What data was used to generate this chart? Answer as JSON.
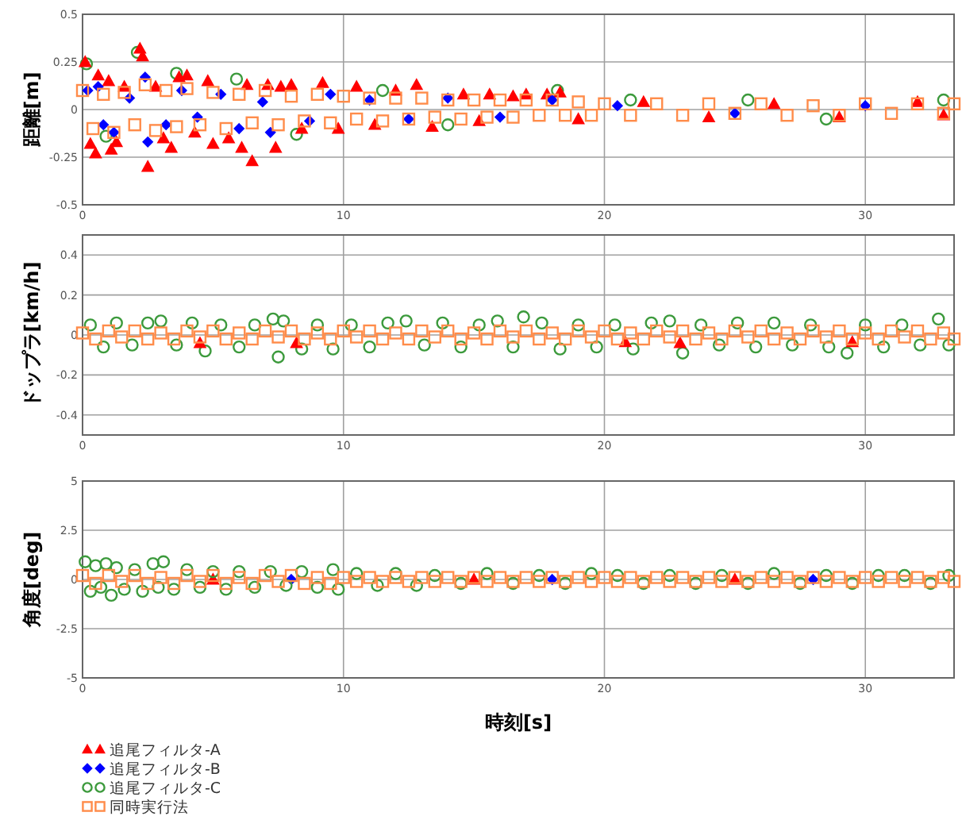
{
  "chart_data": [
    {
      "type": "scatter",
      "ylabel": "距離[m]",
      "xlim": [
        0,
        33.4
      ],
      "xticks": [
        0,
        10,
        20,
        30
      ],
      "ylim": [
        -0.5,
        0.5
      ],
      "yticks": [
        -0.5,
        -0.25,
        0,
        0.25,
        0.5
      ],
      "grid": true,
      "series": [
        {
          "color": "#3c9a3c",
          "marker": "circle",
          "x": [
            0.15,
            0.9,
            2.1,
            3.6,
            5.9,
            8.2,
            11.5,
            14.0,
            18.2,
            21.0,
            25.5,
            28.5,
            33.0
          ],
          "values": [
            0.24,
            -0.14,
            0.3,
            0.19,
            0.16,
            -0.13,
            0.1,
            -0.08,
            0.1,
            0.05,
            0.05,
            -0.05,
            0.05
          ]
        },
        {
          "color": "#ff0000",
          "marker": "triangle",
          "x": [
            0.1,
            0.3,
            0.5,
            0.6,
            1.0,
            1.1,
            1.3,
            1.6,
            2.2,
            2.3,
            2.5,
            2.8,
            3.1,
            3.4,
            3.7,
            4.0,
            4.3,
            4.8,
            5.0,
            5.6,
            6.1,
            6.3,
            6.5,
            7.1,
            7.4,
            7.6,
            8.0,
            8.4,
            9.2,
            9.8,
            10.5,
            11.2,
            12.0,
            12.8,
            13.4,
            14.6,
            15.2,
            15.6,
            16.5,
            17.0,
            17.8,
            18.3,
            19.0,
            21.5,
            24.0,
            26.5,
            29.0,
            32.0,
            33.0
          ],
          "values": [
            0.25,
            -0.18,
            -0.23,
            0.18,
            0.15,
            -0.21,
            -0.17,
            0.12,
            0.32,
            0.28,
            -0.3,
            0.12,
            -0.15,
            -0.2,
            0.17,
            0.18,
            -0.12,
            0.15,
            -0.18,
            -0.15,
            -0.2,
            0.13,
            -0.27,
            0.13,
            -0.2,
            0.12,
            0.13,
            -0.1,
            0.14,
            -0.1,
            0.12,
            -0.08,
            0.1,
            0.13,
            -0.09,
            0.08,
            -0.06,
            0.08,
            0.07,
            0.08,
            0.08,
            0.09,
            -0.05,
            0.04,
            -0.04,
            0.03,
            -0.04,
            0.04,
            -0.03
          ]
        },
        {
          "color": "#0000ff",
          "marker": "diamond",
          "x": [
            0.2,
            0.6,
            0.8,
            1.2,
            1.8,
            2.4,
            2.5,
            3.2,
            3.8,
            4.4,
            5.3,
            6.0,
            6.9,
            7.2,
            8.7,
            9.5,
            11.0,
            12.5,
            14.0,
            16.0,
            18.0,
            20.5,
            25.0,
            30.0
          ],
          "values": [
            0.1,
            0.12,
            -0.08,
            -0.12,
            0.06,
            0.17,
            -0.17,
            -0.08,
            0.1,
            -0.04,
            0.08,
            -0.1,
            0.04,
            -0.12,
            -0.06,
            0.08,
            0.05,
            -0.05,
            0.06,
            -0.04,
            0.05,
            0.02,
            -0.02,
            0.02
          ]
        },
        {
          "color": "#ff8c4a",
          "marker": "square",
          "x": [
            0.0,
            0.4,
            0.8,
            1.2,
            1.6,
            2.0,
            2.4,
            2.8,
            3.2,
            3.6,
            4.0,
            4.5,
            5.0,
            5.5,
            6.0,
            6.5,
            7.0,
            7.5,
            8.0,
            8.5,
            9.0,
            9.5,
            10,
            10.5,
            11,
            11.5,
            12,
            12.5,
            13,
            13.5,
            14,
            14.5,
            15,
            15.5,
            16,
            16.5,
            17,
            17.5,
            18,
            18.5,
            19,
            19.5,
            20,
            21,
            22,
            23,
            24,
            25,
            26,
            27,
            28,
            29,
            30,
            31,
            32,
            33,
            33.4
          ],
          "values": [
            0.1,
            -0.1,
            0.08,
            -0.12,
            0.09,
            -0.08,
            0.13,
            -0.11,
            0.1,
            -0.09,
            0.11,
            -0.08,
            0.09,
            -0.1,
            0.08,
            -0.07,
            0.1,
            -0.08,
            0.07,
            -0.06,
            0.08,
            -0.07,
            0.07,
            -0.05,
            0.06,
            -0.06,
            0.06,
            -0.05,
            0.06,
            -0.04,
            0.05,
            -0.05,
            0.05,
            -0.04,
            0.05,
            -0.04,
            0.05,
            -0.03,
            0.05,
            -0.03,
            0.04,
            -0.03,
            0.03,
            -0.03,
            0.03,
            -0.03,
            0.03,
            -0.02,
            0.03,
            -0.03,
            0.02,
            -0.03,
            0.03,
            -0.02,
            0.03,
            -0.02,
            0.03
          ]
        }
      ]
    },
    {
      "type": "scatter",
      "ylabel": "ドップラ[km/h]",
      "xlim": [
        0,
        33.4
      ],
      "xticks": [
        0,
        10,
        20,
        30
      ],
      "ylim": [
        -0.5,
        0.5
      ],
      "yticks": [
        -0.4,
        -0.2,
        0,
        0.2,
        0.4
      ],
      "grid": true,
      "series": [
        {
          "color": "#3c9a3c",
          "marker": "circle",
          "x": [
            0.3,
            0.8,
            1.3,
            1.9,
            2.5,
            3.0,
            3.6,
            4.2,
            4.7,
            5.3,
            6.0,
            6.6,
            7.3,
            7.5,
            7.7,
            8.4,
            9.0,
            9.6,
            10.3,
            11.0,
            11.7,
            12.4,
            13.1,
            13.8,
            14.5,
            15.2,
            15.9,
            16.5,
            16.9,
            17.6,
            18.3,
            19.0,
            19.7,
            20.4,
            21.1,
            21.8,
            22.5,
            23.0,
            23.7,
            24.4,
            25.1,
            25.8,
            26.5,
            27.2,
            27.9,
            28.6,
            29.3,
            30.0,
            30.7,
            31.4,
            32.1,
            32.8,
            33.2
          ],
          "values": [
            0.05,
            -0.06,
            0.06,
            -0.05,
            0.06,
            0.07,
            -0.05,
            0.06,
            -0.08,
            0.05,
            -0.06,
            0.05,
            0.08,
            -0.11,
            0.07,
            -0.07,
            0.05,
            -0.07,
            0.05,
            -0.06,
            0.06,
            0.07,
            -0.05,
            0.06,
            -0.06,
            0.05,
            0.07,
            -0.06,
            0.09,
            0.06,
            -0.07,
            0.05,
            -0.06,
            0.05,
            -0.07,
            0.06,
            0.07,
            -0.09,
            0.05,
            -0.05,
            0.06,
            -0.06,
            0.06,
            -0.05,
            0.05,
            -0.06,
            -0.09,
            0.05,
            -0.06,
            0.05,
            -0.05,
            0.08,
            -0.05
          ]
        },
        {
          "color": "#ff0000",
          "marker": "triangle",
          "x": [
            4.5,
            8.2,
            20.8,
            22.9,
            29.5
          ],
          "values": [
            -0.04,
            -0.04,
            -0.035,
            -0.04,
            -0.035
          ]
        },
        {
          "color": "#ff8c4a",
          "marker": "square",
          "x": [
            0.0,
            0.5,
            1,
            1.5,
            2,
            2.5,
            3,
            3.5,
            4,
            4.5,
            5,
            5.5,
            6,
            6.5,
            7,
            7.5,
            8,
            8.5,
            9,
            9.5,
            10,
            10.5,
            11,
            11.5,
            12,
            12.5,
            13,
            13.5,
            14,
            14.5,
            15,
            15.5,
            16,
            16.5,
            17,
            17.5,
            18,
            18.5,
            19,
            19.5,
            20,
            20.5,
            21,
            21.5,
            22,
            22.5,
            23,
            23.5,
            24,
            24.5,
            25,
            25.5,
            26,
            26.5,
            27,
            27.5,
            28,
            28.5,
            29,
            29.5,
            30,
            30.5,
            31,
            31.5,
            32,
            32.5,
            33,
            33.4
          ],
          "values": [
            0.01,
            -0.02,
            0.02,
            -0.01,
            0.02,
            -0.02,
            0.01,
            -0.02,
            0.02,
            -0.01,
            0.02,
            -0.02,
            0.01,
            -0.02,
            0.02,
            -0.01,
            0.02,
            -0.02,
            0.01,
            -0.02,
            0.02,
            -0.01,
            0.02,
            -0.02,
            0.01,
            -0.02,
            0.02,
            -0.01,
            0.02,
            -0.02,
            0.01,
            -0.02,
            0.02,
            -0.01,
            0.02,
            -0.02,
            0.01,
            -0.02,
            0.02,
            -0.01,
            0.02,
            -0.02,
            0.01,
            -0.02,
            0.02,
            -0.01,
            0.02,
            -0.02,
            0.01,
            -0.02,
            0.02,
            -0.01,
            0.02,
            -0.02,
            0.01,
            -0.02,
            0.02,
            -0.01,
            0.02,
            -0.02,
            0.01,
            -0.02,
            0.02,
            -0.01,
            0.02,
            -0.02,
            0.01,
            -0.02
          ]
        }
      ]
    },
    {
      "type": "scatter",
      "ylabel": "角度[deg]",
      "xlabel": "時刻[s]",
      "xlim": [
        0,
        33.4
      ],
      "xticks": [
        0,
        10,
        20,
        30
      ],
      "ylim": [
        -5,
        5
      ],
      "yticks": [
        -5,
        -2.5,
        0,
        2.5,
        5
      ],
      "grid": true,
      "legend": "bottom left",
      "series": [
        {
          "name": "追尾フィルタ-A",
          "color": "#ff0000",
          "marker": "triangle",
          "x": [
            5,
            15,
            25
          ],
          "values": [
            0.0,
            0.0,
            0.0
          ]
        },
        {
          "name": "追尾フィルタ-B",
          "color": "#0000ff",
          "marker": "diamond",
          "x": [
            8,
            18,
            28
          ],
          "values": [
            0.0,
            0.0,
            0.0
          ]
        },
        {
          "name": "追尾フィルタ-C",
          "color": "#3c9a3c",
          "marker": "circle",
          "x": [
            0.1,
            0.3,
            0.5,
            0.7,
            0.9,
            1.1,
            1.3,
            1.6,
            2.0,
            2.3,
            2.7,
            2.9,
            3.1,
            3.5,
            4.0,
            4.5,
            5.0,
            5.5,
            6.0,
            6.6,
            7.2,
            7.8,
            8.4,
            9.0,
            9.6,
            9.8,
            10.5,
            11.3,
            12.0,
            12.8,
            13.5,
            14.5,
            15.5,
            16.5,
            17.5,
            18.5,
            19.5,
            20.5,
            21.5,
            22.5,
            23.5,
            24.5,
            25.5,
            26.5,
            27.5,
            28.5,
            29.5,
            30.5,
            31.5,
            32.5,
            33.2
          ],
          "values": [
            0.9,
            -0.6,
            0.7,
            -0.4,
            0.8,
            -0.8,
            0.6,
            -0.5,
            0.5,
            -0.6,
            0.8,
            -0.4,
            0.9,
            -0.5,
            0.5,
            -0.4,
            0.4,
            -0.5,
            0.4,
            -0.4,
            0.4,
            -0.3,
            0.4,
            -0.4,
            0.5,
            -0.5,
            0.3,
            -0.3,
            0.3,
            -0.3,
            0.2,
            -0.2,
            0.3,
            -0.2,
            0.2,
            -0.2,
            0.3,
            0.2,
            -0.2,
            0.2,
            -0.2,
            0.2,
            -0.2,
            0.3,
            -0.2,
            0.2,
            -0.2,
            0.2,
            0.2,
            -0.2,
            0.2
          ]
        },
        {
          "name": "同時実行法",
          "color": "#ff8c4a",
          "marker": "square",
          "x": [
            0.0,
            0.5,
            1,
            1.5,
            2,
            2.5,
            3,
            3.5,
            4,
            4.5,
            5,
            5.5,
            6,
            6.5,
            7,
            7.5,
            8,
            8.5,
            9,
            9.5,
            10,
            10.5,
            11,
            11.5,
            12,
            12.5,
            13,
            13.5,
            14,
            14.5,
            15,
            15.5,
            16,
            16.5,
            17,
            17.5,
            18,
            18.5,
            19,
            19.5,
            20,
            20.5,
            21,
            21.5,
            22,
            22.5,
            23,
            23.5,
            24,
            24.5,
            25,
            25.5,
            26,
            26.5,
            27,
            27.5,
            28,
            28.5,
            29,
            29.5,
            30,
            30.5,
            31,
            31.5,
            32,
            32.5,
            33,
            33.4
          ],
          "values": [
            0.2,
            -0.2,
            0.2,
            -0.1,
            0.2,
            -0.2,
            0.1,
            -0.2,
            0.2,
            -0.1,
            0.2,
            -0.2,
            0.1,
            -0.2,
            0.2,
            -0.1,
            0.2,
            -0.2,
            0.1,
            -0.2,
            0.1,
            -0.1,
            0.1,
            -0.1,
            0.1,
            -0.1,
            0.1,
            -0.1,
            0.1,
            -0.1,
            0.1,
            -0.1,
            0.1,
            -0.1,
            0.1,
            -0.1,
            0.1,
            -0.1,
            0.1,
            -0.1,
            0.1,
            -0.1,
            0.1,
            -0.1,
            0.1,
            -0.1,
            0.1,
            -0.1,
            0.1,
            -0.1,
            0.1,
            -0.1,
            0.1,
            -0.1,
            0.1,
            -0.1,
            0.1,
            -0.1,
            0.1,
            -0.1,
            0.1,
            -0.1,
            0.1,
            -0.1,
            0.1,
            -0.1,
            0.1,
            -0.1
          ]
        }
      ]
    }
  ]
}
